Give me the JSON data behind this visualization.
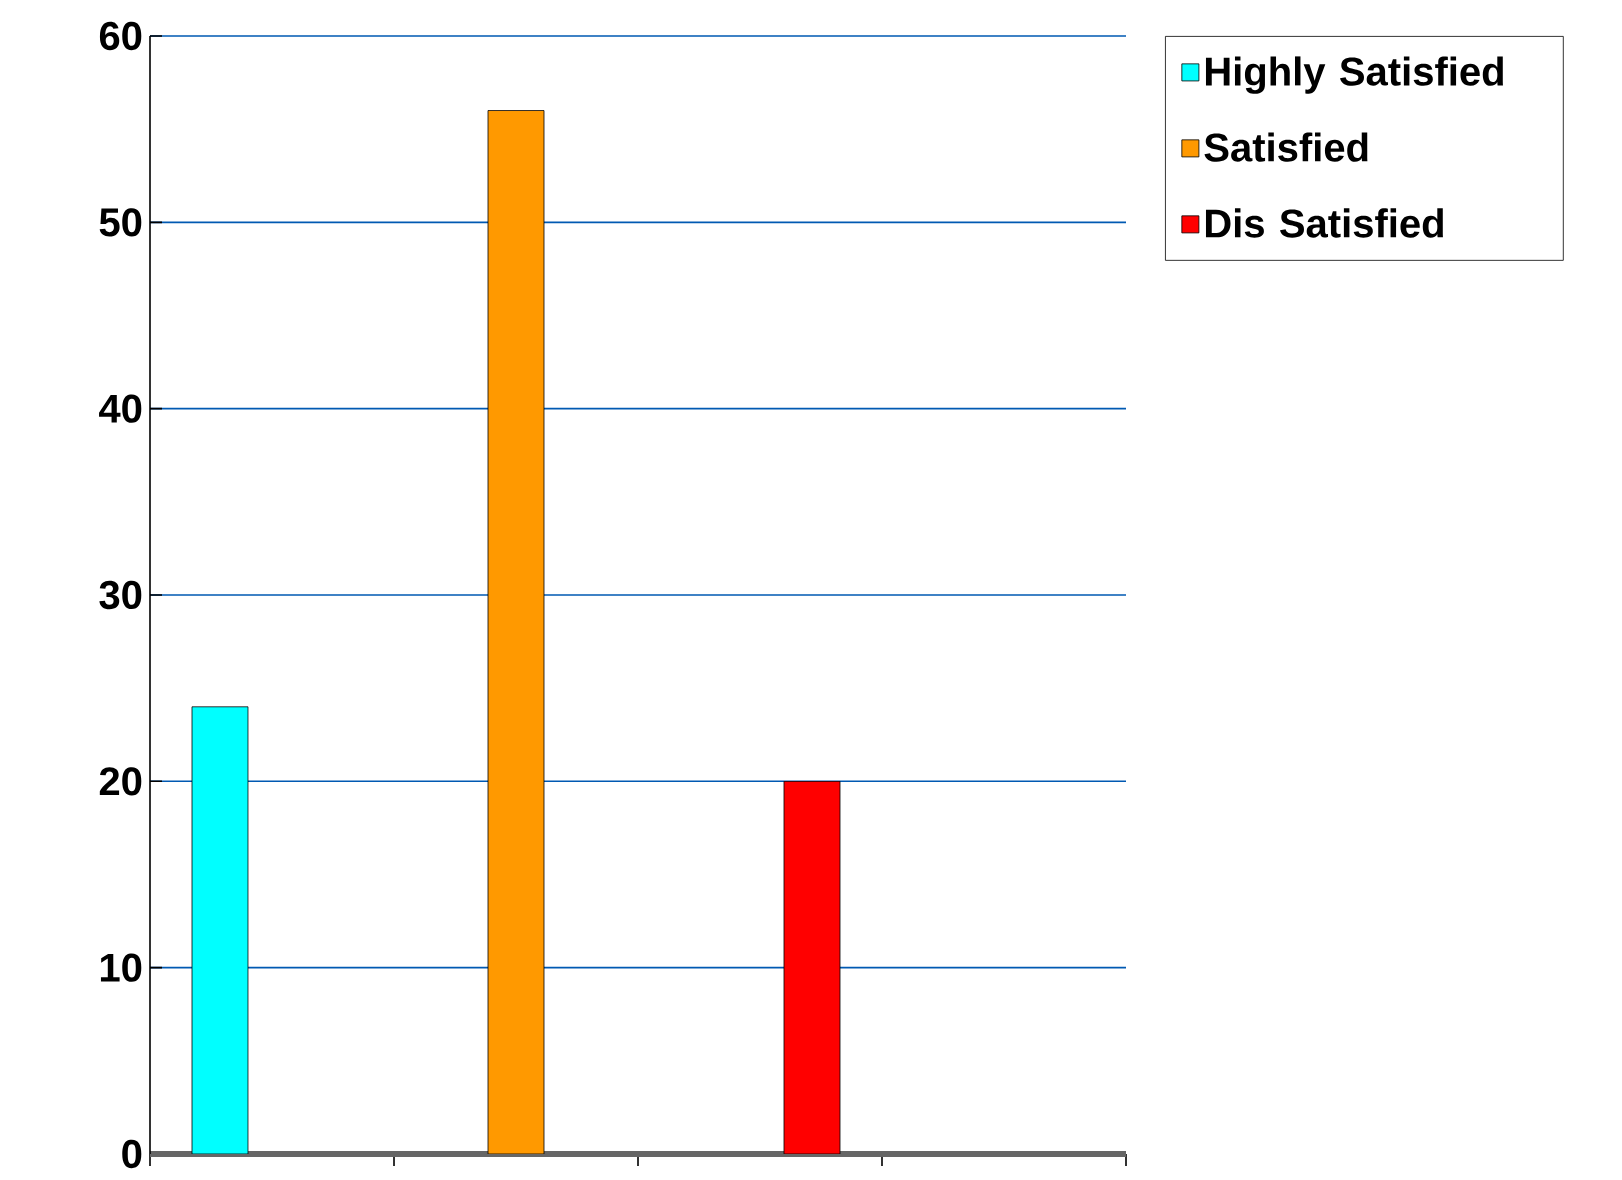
{
  "chart_data": {
    "type": "bar",
    "categories": [
      null,
      null,
      null,
      null
    ],
    "series": [
      {
        "name": "Highly Satisfied",
        "color": "#00ffff",
        "values": [
          24,
          null,
          null,
          null
        ]
      },
      {
        "name": "Satisfied",
        "color": "#ff9900",
        "values": [
          null,
          56,
          null,
          null
        ]
      },
      {
        "name": "Dis Satisfied",
        "color": "#ff0000",
        "values": [
          null,
          null,
          20,
          null
        ]
      }
    ],
    "ylim": [
      0,
      60
    ],
    "yticks": [
      0,
      10,
      20,
      30,
      40,
      50,
      60
    ],
    "grid": "y",
    "legend": "top right"
  }
}
